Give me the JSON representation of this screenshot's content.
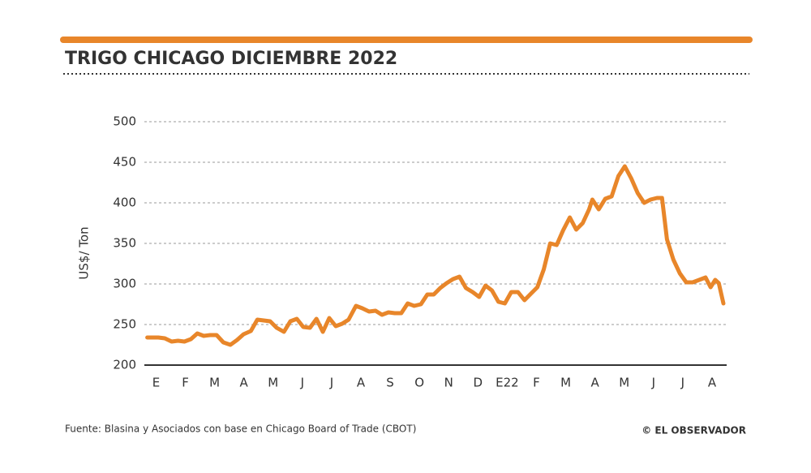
{
  "chart_data": {
    "type": "line",
    "title": "TRIGO CHICAGO DICIEMBRE 2022",
    "y_label": "US$/ Ton",
    "source": "Fuente: Blasina y Asociados con base en Chicago Board of Trade (CBOT)",
    "credit": "© EL OBSERVADOR",
    "color": "#e8862a",
    "grid": true,
    "ylim": [
      200,
      500
    ],
    "yticks": [
      200,
      250,
      300,
      350,
      400,
      450,
      500
    ],
    "xlim": [
      -0.4,
      19.5
    ],
    "xticks": [
      {
        "value": 0,
        "label": "E"
      },
      {
        "value": 1,
        "label": "F"
      },
      {
        "value": 2,
        "label": "M"
      },
      {
        "value": 3,
        "label": "A"
      },
      {
        "value": 4,
        "label": "M"
      },
      {
        "value": 5,
        "label": "J"
      },
      {
        "value": 6,
        "label": "J"
      },
      {
        "value": 7,
        "label": "A"
      },
      {
        "value": 8,
        "label": "S"
      },
      {
        "value": 9,
        "label": "O"
      },
      {
        "value": 10,
        "label": "N"
      },
      {
        "value": 11,
        "label": "D"
      },
      {
        "value": 12,
        "label": "E22"
      },
      {
        "value": 13,
        "label": "F"
      },
      {
        "value": 14,
        "label": "M"
      },
      {
        "value": 15,
        "label": "A"
      },
      {
        "value": 16,
        "label": "M"
      },
      {
        "value": 17,
        "label": "J"
      },
      {
        "value": 18,
        "label": "J"
      },
      {
        "value": 19,
        "label": "A"
      }
    ],
    "x": [
      -0.3,
      0.08,
      0.3,
      0.53,
      0.75,
      0.97,
      1.19,
      1.41,
      1.63,
      1.85,
      2.07,
      2.3,
      2.54,
      2.77,
      2.99,
      3.24,
      3.46,
      3.68,
      3.9,
      4.12,
      4.37,
      4.59,
      4.81,
      5.03,
      5.26,
      5.48,
      5.7,
      5.92,
      6.14,
      6.36,
      6.58,
      6.83,
      7.05,
      7.28,
      7.5,
      7.72,
      7.94,
      8.16,
      8.38,
      8.6,
      8.82,
      9.05,
      9.27,
      9.49,
      9.71,
      9.93,
      10.15,
      10.37,
      10.59,
      10.82,
      11.04,
      11.26,
      11.48,
      11.7,
      11.92,
      12.14,
      12.37,
      12.59,
      12.81,
      13.03,
      13.25,
      13.47,
      13.69,
      13.91,
      14.14,
      14.36,
      14.58,
      14.8,
      14.91,
      15.13,
      15.35,
      15.57,
      15.8,
      16.02,
      16.24,
      16.46,
      16.68,
      16.9,
      17.12,
      17.29,
      17.46,
      17.68,
      17.9,
      18.12,
      18.34,
      18.56,
      18.78,
      18.95,
      19.11,
      19.23,
      19.39
    ],
    "values": [
      234,
      234,
      233,
      229,
      230,
      229,
      232,
      239,
      236,
      237,
      237,
      228,
      225,
      231,
      238,
      242,
      256,
      255,
      254,
      246,
      241,
      254,
      257,
      247,
      246,
      257,
      241,
      258,
      248,
      251,
      256,
      273,
      270,
      266,
      267,
      262,
      265,
      264,
      264,
      276,
      273,
      275,
      287,
      287,
      295,
      301,
      306,
      309,
      295,
      290,
      284,
      298,
      292,
      278,
      276,
      290,
      290,
      280,
      288,
      296,
      318,
      350,
      348,
      366,
      382,
      367,
      375,
      392,
      404,
      392,
      405,
      408,
      433,
      445,
      430,
      412,
      400,
      404,
      406,
      406,
      355,
      330,
      313,
      302,
      302,
      305,
      308,
      296,
      305,
      301,
      276
    ]
  }
}
